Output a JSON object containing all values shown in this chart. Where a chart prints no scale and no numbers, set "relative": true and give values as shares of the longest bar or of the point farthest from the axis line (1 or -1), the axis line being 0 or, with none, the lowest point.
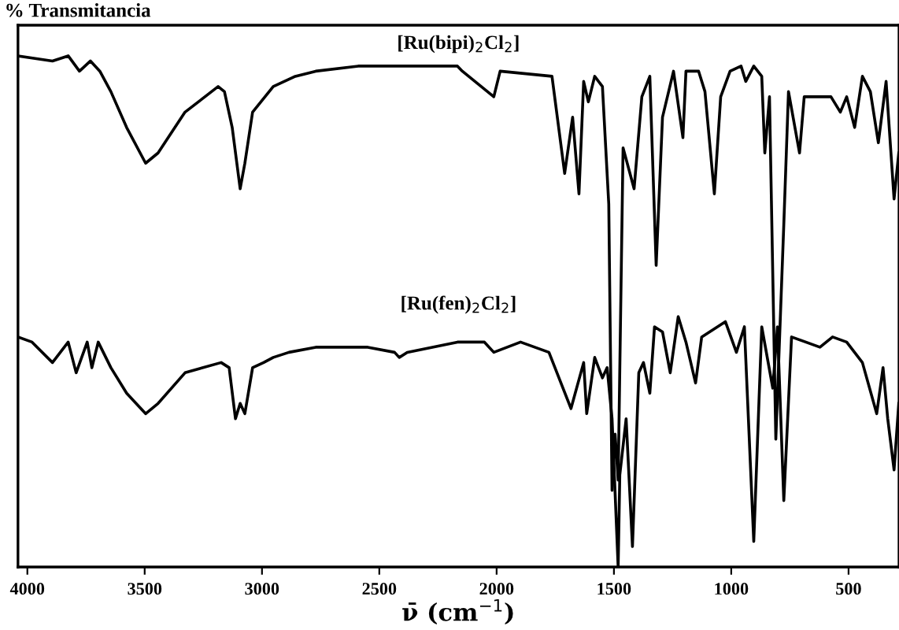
{
  "chart_data": {
    "type": "line",
    "relative": true,
    "ylabel": "% Transmitancia",
    "xlabel": "ν̄ (cm$^{−1}$)",
    "xlim": [
      4040,
      285
    ],
    "xticks": [
      4000,
      3500,
      3000,
      2500,
      2000,
      1500,
      1000,
      500
    ],
    "tick_labels": "x",
    "grid": false,
    "marker": "none",
    "line_style": "solid",
    "series": [
      {
        "name": "[Ru(bipi)$_{2}$Cl$_{2}$]",
        "color": "#000000",
        "x": [
          4040,
          3893,
          3826,
          3778,
          3731,
          3691,
          3644,
          3577,
          3496,
          3443,
          3328,
          3187,
          3160,
          3127,
          3093,
          3073,
          3040,
          2952,
          2858,
          2771,
          2590,
          2415,
          2281,
          2167,
          2146,
          2012,
          1985,
          1764,
          1710,
          1676,
          1649,
          1629,
          1609,
          1582,
          1549,
          1522,
          1508,
          1495,
          1482,
          1461,
          1414,
          1381,
          1347,
          1320,
          1293,
          1246,
          1206,
          1193,
          1139,
          1112,
          1072,
          1045,
          1005,
          958,
          938,
          904,
          870,
          857,
          837,
          810,
          776,
          756,
          709,
          689,
          575,
          535,
          508,
          474,
          441,
          407,
          373,
          340,
          306,
          286
        ],
        "values": [
          1.0,
          0.99,
          1.0,
          0.97,
          0.99,
          0.97,
          0.93,
          0.86,
          0.79,
          0.81,
          0.89,
          0.94,
          0.93,
          0.86,
          0.74,
          0.79,
          0.89,
          0.94,
          0.96,
          0.97,
          0.98,
          0.98,
          0.98,
          0.98,
          0.97,
          0.92,
          0.97,
          0.96,
          0.77,
          0.88,
          0.73,
          0.95,
          0.91,
          0.96,
          0.94,
          0.71,
          0.15,
          0.26,
          0.17,
          0.82,
          0.74,
          0.92,
          0.96,
          0.59,
          0.88,
          0.97,
          0.84,
          0.97,
          0.97,
          0.93,
          0.73,
          0.92,
          0.97,
          0.98,
          0.95,
          0.98,
          0.96,
          0.81,
          0.92,
          0.25,
          0.67,
          0.93,
          0.81,
          0.92,
          0.92,
          0.89,
          0.92,
          0.86,
          0.96,
          0.93,
          0.83,
          0.95,
          0.72,
          0.81
        ]
      },
      {
        "name": "[Ru(fen)$_{2}$Cl$_{2}$]",
        "color": "#000000",
        "x": [
          4040,
          3980,
          3893,
          3826,
          3792,
          3745,
          3725,
          3698,
          3644,
          3577,
          3496,
          3443,
          3328,
          3174,
          3140,
          3113,
          3093,
          3073,
          3040,
          2993,
          2952,
          2885,
          2771,
          2549,
          2435,
          2415,
          2381,
          2167,
          2052,
          2012,
          1898,
          1777,
          1683,
          1629,
          1616,
          1582,
          1549,
          1529,
          1508,
          1482,
          1475,
          1448,
          1421,
          1394,
          1374,
          1347,
          1327,
          1293,
          1260,
          1226,
          1193,
          1152,
          1126,
          1025,
          978,
          944,
          904,
          870,
          823,
          803,
          776,
          743,
          622,
          568,
          508,
          441,
          380,
          353,
          333,
          306,
          286
        ],
        "values": [
          0.45,
          0.44,
          0.4,
          0.44,
          0.38,
          0.44,
          0.39,
          0.44,
          0.39,
          0.34,
          0.3,
          0.32,
          0.38,
          0.4,
          0.39,
          0.29,
          0.32,
          0.3,
          0.39,
          0.4,
          0.41,
          0.42,
          0.43,
          0.43,
          0.42,
          0.41,
          0.42,
          0.44,
          0.44,
          0.42,
          0.44,
          0.42,
          0.31,
          0.4,
          0.3,
          0.41,
          0.37,
          0.39,
          0.29,
          0.0,
          0.18,
          0.29,
          0.04,
          0.38,
          0.4,
          0.34,
          0.47,
          0.46,
          0.38,
          0.49,
          0.44,
          0.36,
          0.45,
          0.48,
          0.42,
          0.47,
          0.05,
          0.47,
          0.35,
          0.47,
          0.13,
          0.45,
          0.43,
          0.45,
          0.44,
          0.4,
          0.3,
          0.39,
          0.29,
          0.19,
          0.32
        ]
      }
    ]
  }
}
